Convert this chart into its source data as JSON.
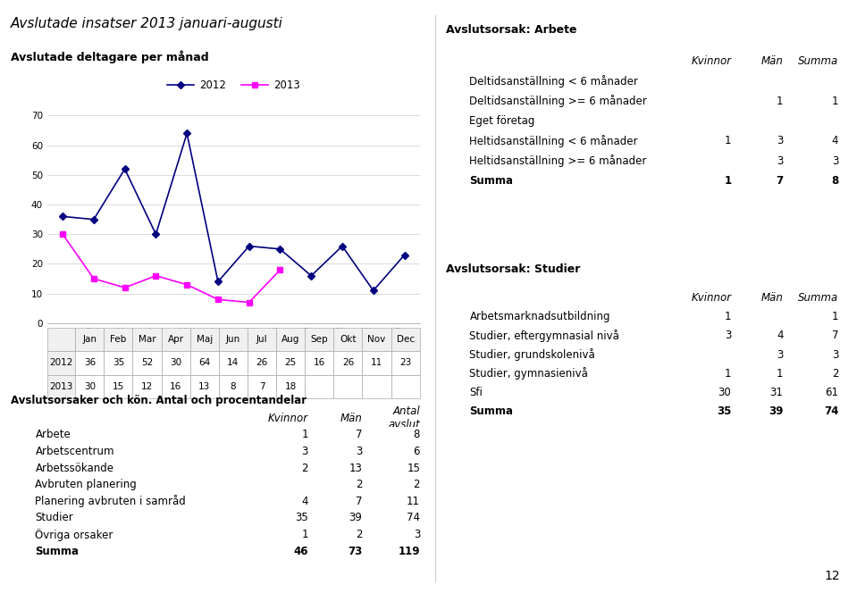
{
  "title": "Avslutade insatser 2013 januari-augusti",
  "chart_title": "Avslutade deltagare per månad",
  "months": [
    "Jan",
    "Feb",
    "Mar",
    "Apr",
    "Maj",
    "Jun",
    "Jul",
    "Aug",
    "Sep",
    "Okt",
    "Nov",
    "Dec"
  ],
  "data_2012": [
    36,
    35,
    52,
    30,
    64,
    14,
    26,
    25,
    16,
    26,
    11,
    23
  ],
  "data_2013": [
    30,
    15,
    12,
    16,
    13,
    8,
    7,
    18,
    null,
    null,
    null,
    null
  ],
  "color_2012": "#000080",
  "color_2013": "#FF00FF",
  "ylim": [
    0,
    70
  ],
  "yticks": [
    0,
    10,
    20,
    30,
    40,
    50,
    60,
    70
  ],
  "page_number": "12",
  "table1_title": "Avslutsorsaker och kön. Antal och procentandelar",
  "table1_headers": [
    "Kvinnor",
    "Män",
    "Antal\navslut"
  ],
  "table1_rows": [
    [
      "Arbete",
      "1",
      "7",
      "8"
    ],
    [
      "Arbetscentrum",
      "3",
      "3",
      "6"
    ],
    [
      "Arbetssökande",
      "2",
      "13",
      "15"
    ],
    [
      "Avbruten planering",
      "",
      "2",
      "2"
    ],
    [
      "Planering avbruten i samråd",
      "4",
      "7",
      "11"
    ],
    [
      "Studier",
      "35",
      "39",
      "74"
    ],
    [
      "Övriga orsaker",
      "1",
      "2",
      "3"
    ]
  ],
  "table1_summa": [
    "Summa",
    "46",
    "73",
    "119"
  ],
  "table2_title": "Avslutsorsak: Arbete",
  "table2_headers": [
    "Kvinnor",
    "Män",
    "Summa"
  ],
  "table2_rows": [
    [
      "Deltidsanställning < 6 månader",
      "",
      "",
      ""
    ],
    [
      "Deltidsanställning >= 6 månader",
      "",
      "1",
      "1"
    ],
    [
      "Eget företag",
      "",
      "",
      ""
    ],
    [
      "Heltidsanställning < 6 månader",
      "1",
      "3",
      "4"
    ],
    [
      "Heltidsanställning >= 6 månader",
      "",
      "3",
      "3"
    ]
  ],
  "table2_summa": [
    "Summa",
    "1",
    "7",
    "8"
  ],
  "table3_title": "Avslutsorsak: Studier",
  "table3_headers": [
    "Kvinnor",
    "Män",
    "Summa"
  ],
  "table3_rows": [
    [
      "Arbetsmarknadsutbildning",
      "1",
      "",
      "1"
    ],
    [
      "Studier, eftergymnasial nivå",
      "3",
      "4",
      "7"
    ],
    [
      "Studier, grundskolenivå",
      "",
      "3",
      "3"
    ],
    [
      "Studier, gymnasienivå",
      "1",
      "1",
      "2"
    ],
    [
      "Sfi",
      "30",
      "31",
      "61"
    ]
  ],
  "table3_summa": [
    "Summa",
    "35",
    "39",
    "74"
  ]
}
